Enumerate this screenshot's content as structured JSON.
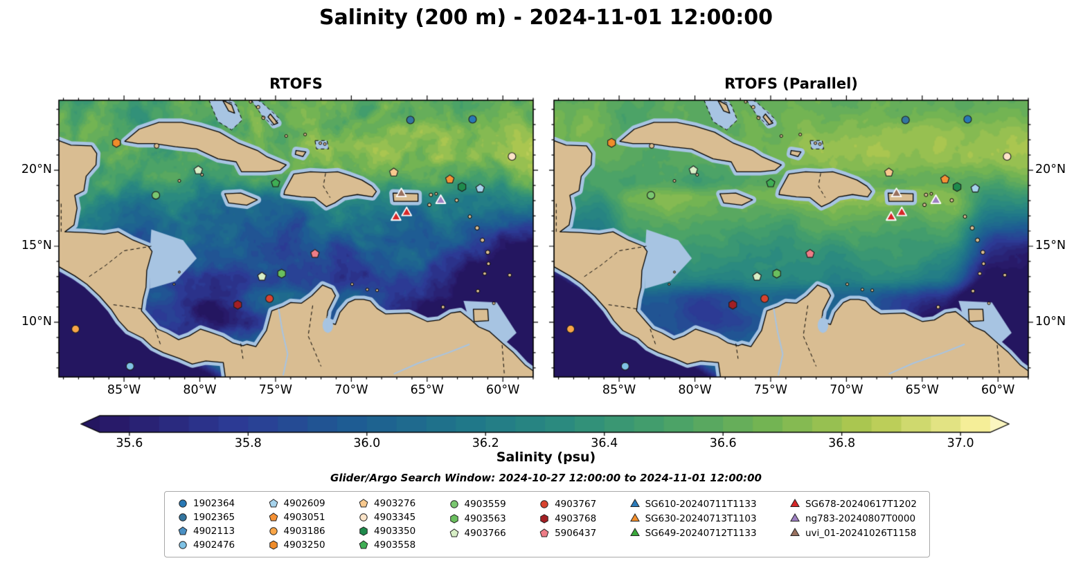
{
  "figure": {
    "title": "Salinity (200 m) - 2024-11-01 12:00:00",
    "subtitle": "Glider/Argo Search Window: 2024-10-27 12:00:00 to 2024-11-01 12:00:00",
    "background": "#ffffff"
  },
  "chart_data": {
    "type": "heatmap",
    "variable": "Salinity",
    "depth": "200 m",
    "datetime": "2024-11-01 12:00:00",
    "panels": [
      {
        "title": "RTOFS",
        "ytick_side": "left"
      },
      {
        "title": "RTOFS (Parallel)",
        "ytick_side": "right"
      }
    ],
    "extent": {
      "lon_min": -89.3,
      "lon_max": -58.0,
      "lat_min": 6.4,
      "lat_max": 24.6
    },
    "xticks": {
      "values": [
        -85,
        -80,
        -75,
        -70,
        -65,
        -60
      ],
      "labels": [
        "85°W",
        "80°W",
        "75°W",
        "70°W",
        "65°W",
        "60°W"
      ]
    },
    "yticks": {
      "values": [
        10,
        15,
        20
      ],
      "labels": [
        "10°N",
        "15°N",
        "20°N"
      ]
    },
    "colorbar": {
      "label": "Salinity (psu)",
      "min": 35.55,
      "max": 37.05,
      "step": 0.05,
      "tick_values": [
        35.6,
        35.8,
        36.0,
        36.2,
        36.4,
        36.6,
        36.8,
        37.0
      ],
      "tick_labels": [
        "35.6",
        "35.8",
        "36.0",
        "36.2",
        "36.4",
        "36.6",
        "36.8",
        "37.0"
      ],
      "extend": "both",
      "colormap": "haline"
    },
    "colormap_anchors": [
      [
        0.0,
        "#281a69"
      ],
      [
        0.14,
        "#2c3a95"
      ],
      [
        0.27,
        "#1e5b93"
      ],
      [
        0.4,
        "#1f758a"
      ],
      [
        0.52,
        "#2b8b7f"
      ],
      [
        0.64,
        "#46a06a"
      ],
      [
        0.76,
        "#74b453"
      ],
      [
        0.88,
        "#b3c94f"
      ],
      [
        1.0,
        "#f5ee98"
      ]
    ],
    "colors": {
      "under": "#241660",
      "over": "#fbf6c0",
      "land": "#d9bd92",
      "shallow": "#a7c4e2",
      "coast": "#000000"
    },
    "markers": [
      {
        "id": "1902364",
        "lon": -62.0,
        "lat": 23.35
      },
      {
        "id": "1902365",
        "lon": -66.1,
        "lat": 23.3
      },
      {
        "id": "4903250",
        "lon": -85.5,
        "lat": 21.8
      },
      {
        "id": "4903345",
        "lon": -59.4,
        "lat": 20.9
      },
      {
        "id": "4903766",
        "lon": -80.1,
        "lat": 20.0
      },
      {
        "id": "4903558",
        "lon": -75.0,
        "lat": 19.15
      },
      {
        "id": "4903276",
        "lon": -67.2,
        "lat": 19.85
      },
      {
        "id": "4903051",
        "lon": -63.5,
        "lat": 19.4
      },
      {
        "id": "4903350",
        "lon": -62.7,
        "lat": 18.9
      },
      {
        "id": "4902609",
        "lon": -61.5,
        "lat": 18.8
      },
      {
        "id": "4903559",
        "lon": -82.9,
        "lat": 18.35
      },
      {
        "id": "uvi_01-20241026T1158",
        "lon": -66.7,
        "lat": 18.45
      },
      {
        "id": "ng783-20240807T0000",
        "lon": -64.1,
        "lat": 18.0
      },
      {
        "id": "SG678-20240617T1202",
        "lon": -67.05,
        "lat": 16.9
      },
      {
        "id": "SG678-20240617T1202",
        "lon": -66.35,
        "lat": 17.2
      },
      {
        "id": "5906437",
        "lon": -72.4,
        "lat": 14.5
      },
      {
        "id": "4903563",
        "lon": -74.6,
        "lat": 13.2
      },
      {
        "id": "4903766",
        "lon": -75.9,
        "lat": 13.0
      },
      {
        "id": "4903767",
        "lon": -75.4,
        "lat": 11.55
      },
      {
        "id": "4903768",
        "lon": -77.5,
        "lat": 11.15
      },
      {
        "id": "4903186",
        "lon": -88.2,
        "lat": 9.55
      },
      {
        "id": "4902476",
        "lon": -84.6,
        "lat": 7.1
      }
    ]
  },
  "legend": {
    "columns": [
      [
        {
          "label": "1902364",
          "shape": "circle",
          "color": "#2878b5"
        },
        {
          "label": "1902365",
          "shape": "circle",
          "color": "#33759f"
        },
        {
          "label": "4902113",
          "shape": "pentagon",
          "color": "#4a90c4"
        },
        {
          "label": "4902476",
          "shape": "circle",
          "color": "#7fc2e5"
        }
      ],
      [
        {
          "label": "4902609",
          "shape": "pentagon",
          "color": "#a6d3ec"
        },
        {
          "label": "4903051",
          "shape": "pentagon",
          "color": "#f59135"
        },
        {
          "label": "4903186",
          "shape": "circle",
          "color": "#f9a648"
        },
        {
          "label": "4903250",
          "shape": "hexagon",
          "color": "#ef8c2a"
        }
      ],
      [
        {
          "label": "4903276",
          "shape": "pentagon",
          "color": "#f8c98e"
        },
        {
          "label": "4903345",
          "shape": "circle",
          "color": "#fce4c8"
        },
        {
          "label": "4903350",
          "shape": "hexagon",
          "color": "#1f8a4c"
        },
        {
          "label": "4903558",
          "shape": "pentagon",
          "color": "#3fae54"
        }
      ],
      [
        {
          "label": "4903559",
          "shape": "circle",
          "color": "#7ac770"
        },
        {
          "label": "4903563",
          "shape": "hexagon",
          "color": "#6abf5e"
        },
        {
          "label": "4903766",
          "shape": "pentagon",
          "color": "#d8efc6"
        }
      ],
      [
        {
          "label": "4903767",
          "shape": "circle",
          "color": "#d8432f"
        },
        {
          "label": "4903768",
          "shape": "hexagon",
          "color": "#a31f24"
        },
        {
          "label": "5906437",
          "shape": "pentagon",
          "color": "#ee7d87"
        }
      ],
      [
        {
          "label": "SG610-20240711T1133",
          "shape": "triangle",
          "color": "#2b7bba"
        },
        {
          "label": "SG630-20240713T1103",
          "shape": "triangle",
          "color": "#f28e2b"
        },
        {
          "label": "SG649-20240712T1133",
          "shape": "triangle",
          "color": "#39a83b"
        }
      ],
      [
        {
          "label": "SG678-20240617T1202",
          "shape": "triangle",
          "color": "#d62728"
        },
        {
          "label": "ng783-20240807T0000",
          "shape": "triangle",
          "color": "#9d7fc1"
        },
        {
          "label": "uvi_01-20241026T1158",
          "shape": "triangle",
          "color": "#99705e"
        }
      ]
    ]
  }
}
